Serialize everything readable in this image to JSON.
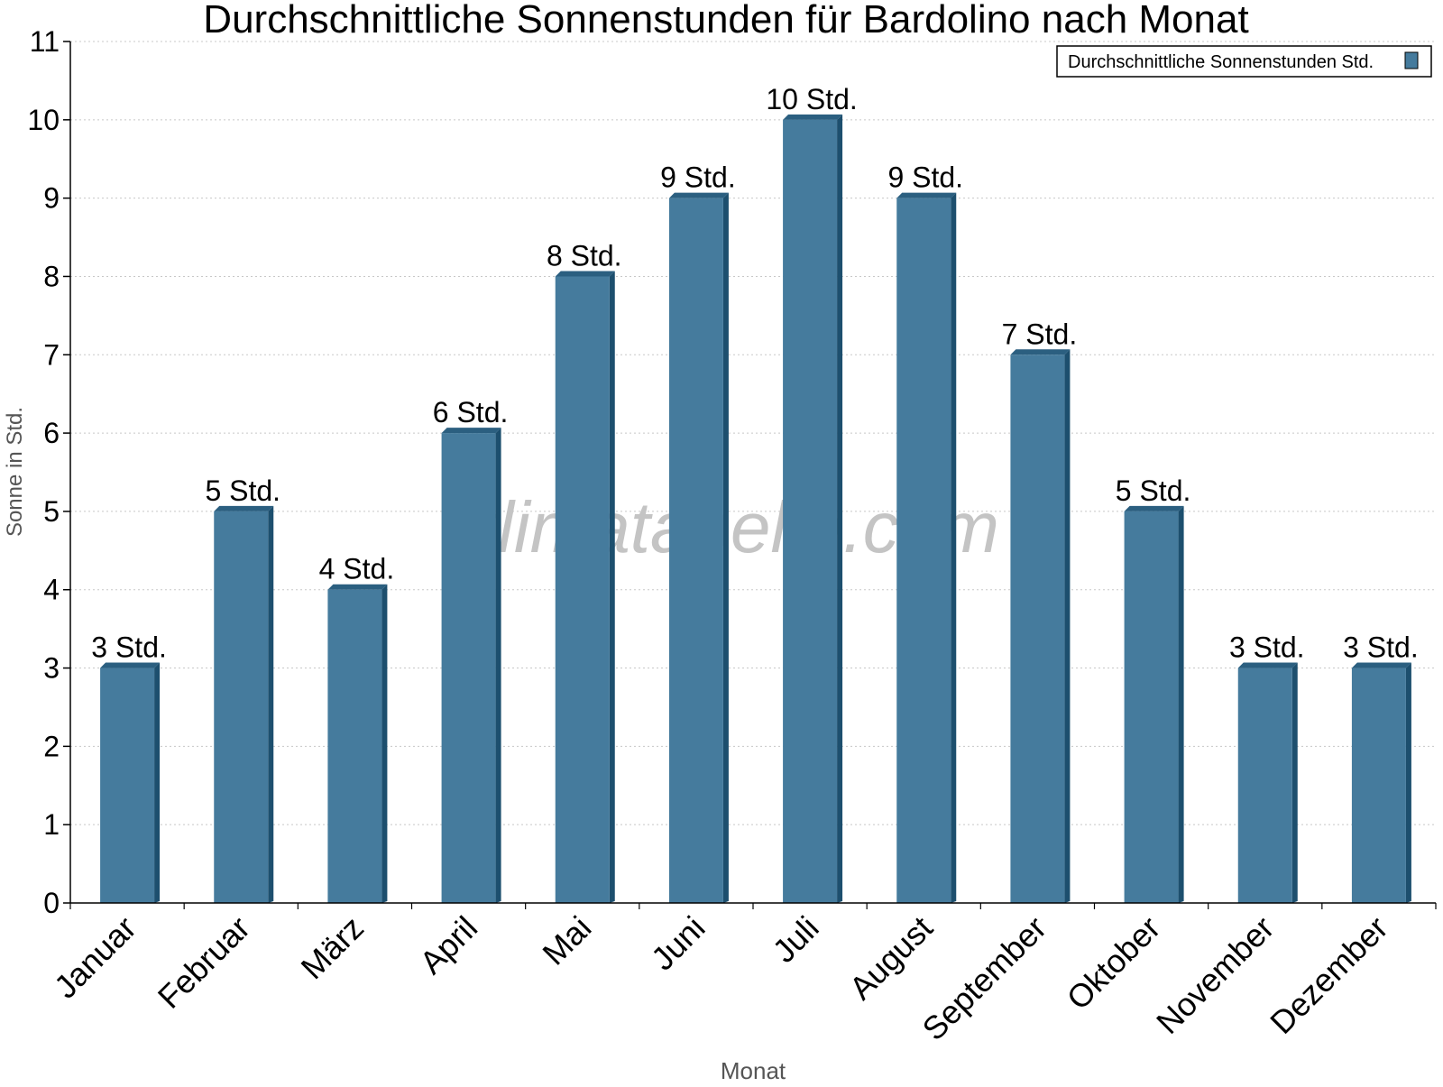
{
  "chart_data": {
    "type": "bar",
    "title": "Durchschnittliche Sonnenstunden für Bardolino nach Monat",
    "xlabel": "Monat",
    "ylabel": "Sonne in Std.",
    "categories": [
      "Januar",
      "Februar",
      "März",
      "April",
      "Mai",
      "Juni",
      "Juli",
      "August",
      "September",
      "Oktober",
      "November",
      "Dezember"
    ],
    "series": [
      {
        "name": "Durchschnittliche Sonnenstunden Std.",
        "values": [
          3,
          5,
          4,
          6,
          8,
          9,
          10,
          9,
          7,
          5,
          3,
          3
        ],
        "data_labels": [
          "3 Std.",
          "5 Std.",
          "4 Std.",
          "6 Std.",
          "8 Std.",
          "9 Std.",
          "10 Std.",
          "9 Std.",
          "7 Std.",
          "5 Std.",
          "3 Std.",
          "3 Std."
        ]
      }
    ],
    "ylim": [
      0,
      11
    ],
    "yticks": [
      "0",
      "1",
      "2",
      "3",
      "4",
      "5",
      "6",
      "7",
      "8",
      "9",
      "10",
      "11"
    ],
    "grid": true,
    "legend_position": "top-right",
    "watermark": "klimatabelle.com",
    "colors": {
      "bar": "#457b9d",
      "bar_side": "#1d4f6e",
      "bar_top": "#2b5f80",
      "grid": "#c8c8c8",
      "axis": "#000000",
      "axis_label": "#555555",
      "watermark": "#c4c4c4"
    }
  }
}
